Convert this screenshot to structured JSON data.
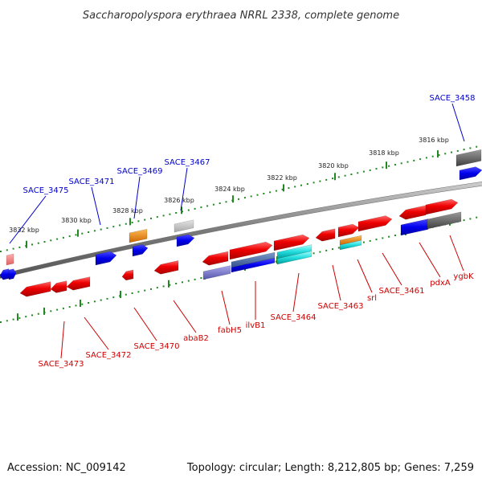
{
  "title": "Saccharopolyspora erythraea NRRL 2338, complete genome",
  "footer": {
    "accession": "Accession: NC_009142",
    "summary": "Topology: circular; Length: 8,212,805 bp; Genes: 7,259"
  },
  "colors": {
    "forward_label": "#0000cc",
    "reverse_label": "#cc0000",
    "backbone": "#888888",
    "tick": "#228822"
  },
  "ruler_labels": [
    "3832 kbp",
    "3830 kbp",
    "3828 kbp",
    "3826 kbp",
    "3824 kbp",
    "3822 kbp",
    "3820 kbp",
    "3818 kbp",
    "3816 kbp"
  ],
  "forward_genes": [
    "SACE_3475",
    "SACE_3471",
    "SACE_3469",
    "SACE_3467",
    "SACE_3458"
  ],
  "reverse_genes": [
    "SACE_3473",
    "SACE_3472",
    "SACE_3470",
    "abaB2",
    "fabH5",
    "ilvB1",
    "SACE_3464",
    "SACE_3463",
    "srl",
    "SACE_3461",
    "pdxA",
    "ygbK"
  ]
}
